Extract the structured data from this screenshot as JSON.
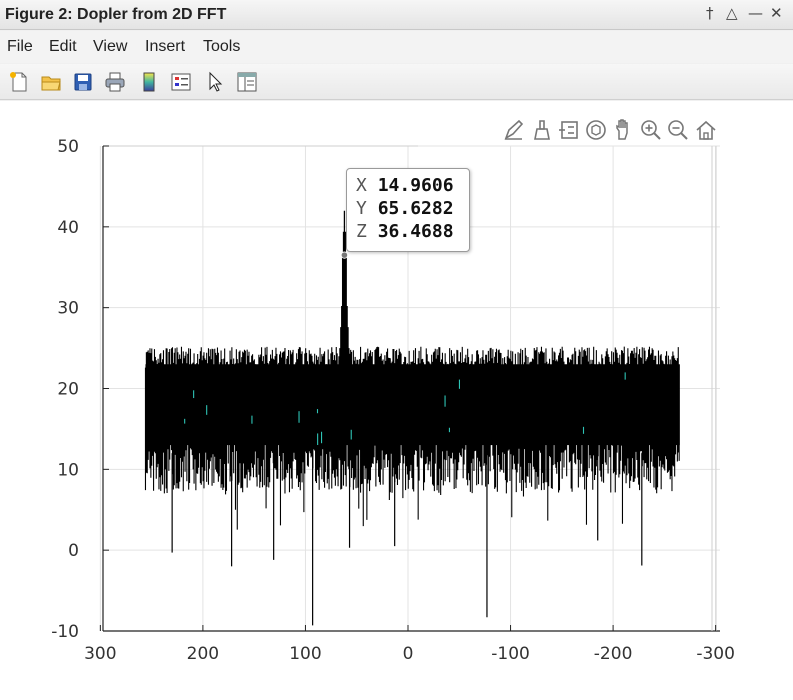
{
  "window": {
    "title": "Figure 2: Dopler from 2D FFT",
    "controls": [
      {
        "name": "pin-icon",
        "glyph": "†"
      },
      {
        "name": "maximize-icon",
        "glyph": "△"
      },
      {
        "name": "minimize-icon",
        "glyph": "—"
      },
      {
        "name": "close-icon",
        "glyph": "✕"
      }
    ]
  },
  "menu": {
    "items": [
      "File",
      "Edit",
      "View",
      "Insert",
      "Tools"
    ]
  },
  "toolbar": {
    "icons": [
      "new-figure-icon",
      "open-folder-icon",
      "save-icon",
      "print-icon",
      "colorbar-icon",
      "legend-icon",
      "pointer-icon",
      "property-editor-icon"
    ]
  },
  "axes_toolbar": {
    "icons": [
      "edit-plot-icon",
      "brush-icon",
      "data-tip-list-icon",
      "rotate-3d-icon",
      "pan-hand-icon",
      "zoom-in-icon",
      "zoom-out-icon",
      "home-icon"
    ]
  },
  "datatip": {
    "x_label": "X",
    "x_value": "14.9606",
    "y_label": "Y",
    "y_value": "65.6282",
    "z_label": "Z",
    "z_value": "36.4688"
  },
  "chart_data": {
    "type": "line",
    "title": "",
    "xlabel": "",
    "ylabel": "",
    "x_reversed": true,
    "xlim": [
      -310,
      300
    ],
    "ylim": [
      -10,
      50
    ],
    "xticks": [
      300,
      200,
      100,
      0,
      -100,
      -200,
      -300
    ],
    "yticks": [
      50,
      40,
      30,
      20,
      10,
      0,
      -10
    ],
    "xtick_labels": [
      "300",
      "200",
      "100",
      "0",
      "-100",
      "-200",
      "-300"
    ],
    "ytick_labels": [
      "50",
      "40",
      "30",
      "20",
      "10",
      "0",
      "-10"
    ],
    "grid": true,
    "series_color": "#000000",
    "accent_color": "#2ec4b6",
    "x_range_of_data": [
      -265,
      256
    ],
    "noise_band": {
      "upper_mean": 23.5,
      "upper_max": 25.2,
      "lower_mean": 12.5,
      "lower_min": 7
    },
    "peak": {
      "x": 62,
      "y": 42
    },
    "datatip_point": {
      "x": 62,
      "y": 36.5
    },
    "deep_dips": [
      {
        "x": 93,
        "y": -9.3
      },
      {
        "x": -77,
        "y": -8.3
      },
      {
        "x": 172,
        "y": -2
      },
      {
        "x": 230,
        "y": -0.3
      },
      {
        "x": 131,
        "y": -1.2
      },
      {
        "x": -228,
        "y": -1.9
      },
      {
        "x": 57,
        "y": 0.3
      },
      {
        "x": 13,
        "y": 0.5
      },
      {
        "x": -185,
        "y": 1.2
      }
    ]
  }
}
